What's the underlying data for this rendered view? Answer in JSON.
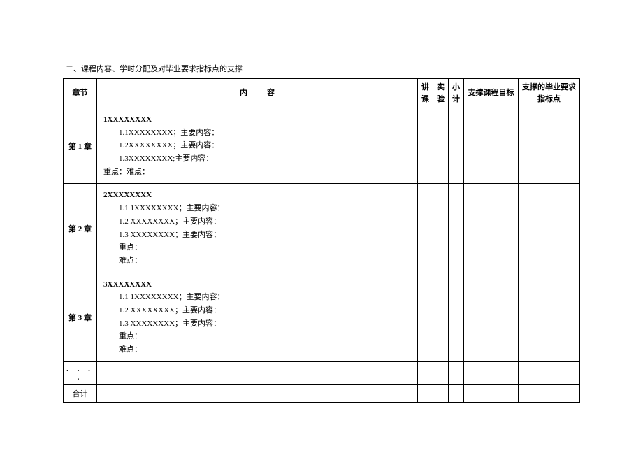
{
  "page": {
    "title": "二、课程内容、学时分配及对毕业要求指标点的支撑"
  },
  "headers": {
    "chapter": "章节",
    "content": "内容",
    "lecture_line1": "讲",
    "lecture_line2": "课",
    "experiment_line1": "实",
    "experiment_line2": "验",
    "subtotal_line1": "小",
    "subtotal_line2": "计",
    "course_obj": "支撑课程目标",
    "grad_req_line1": "支撑的毕业要求",
    "grad_req_line2": "指标点"
  },
  "rows": {
    "ch1": {
      "label": "第 1 章",
      "title": "1XXXXXXXX",
      "l1": "1.1XXXXXXXX；主要内容：",
      "l2": "1.2XXXXXXXX；主要内容：",
      "l3": "1.3XXXXXXXX;主要内容：",
      "kd": "重点：难点："
    },
    "ch2": {
      "label": "第 2 章",
      "title": "2XXXXXXXX",
      "l1": "1.1 1XXXXXXXX；主要内容：",
      "l2": "1.2 XXXXXXXX；主要内容：",
      "l3": "1.3 XXXXXXXX；主要内容：",
      "kd1": "重点：",
      "kd2": "难点："
    },
    "ch3": {
      "label": "第 3 章",
      "title": "3XXXXXXXX",
      "l1": "1.1 1XXXXXXXX；主要内容：",
      "l2": "1.2 XXXXXXXX；主要内容：",
      "l3": "1.3 XXXXXXXX；主要内容：",
      "kd1": "重点：",
      "kd2": "难点："
    },
    "dots": ". . . .",
    "total": "合计"
  }
}
